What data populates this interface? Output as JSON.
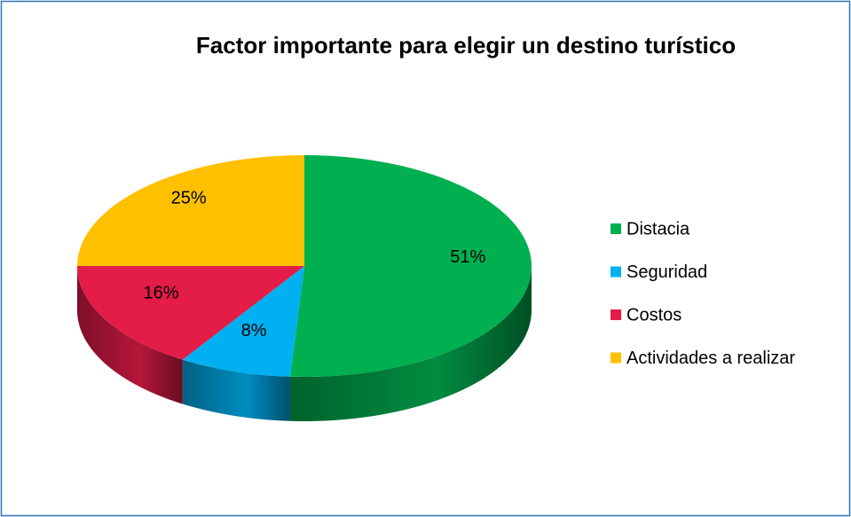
{
  "chart_data": {
    "type": "pie",
    "title": "Factor importante para elegir un destino turístico",
    "categories": [
      "Distacia",
      "Seguridad",
      "Costos",
      "Actividades a realizar"
    ],
    "values": [
      51,
      8,
      16,
      25
    ],
    "value_labels": [
      "51%",
      "8%",
      "16%",
      "25%"
    ],
    "colors": [
      "#00b050",
      "#00b0f0",
      "#e31c48",
      "#ffc000"
    ],
    "legend": "right"
  }
}
